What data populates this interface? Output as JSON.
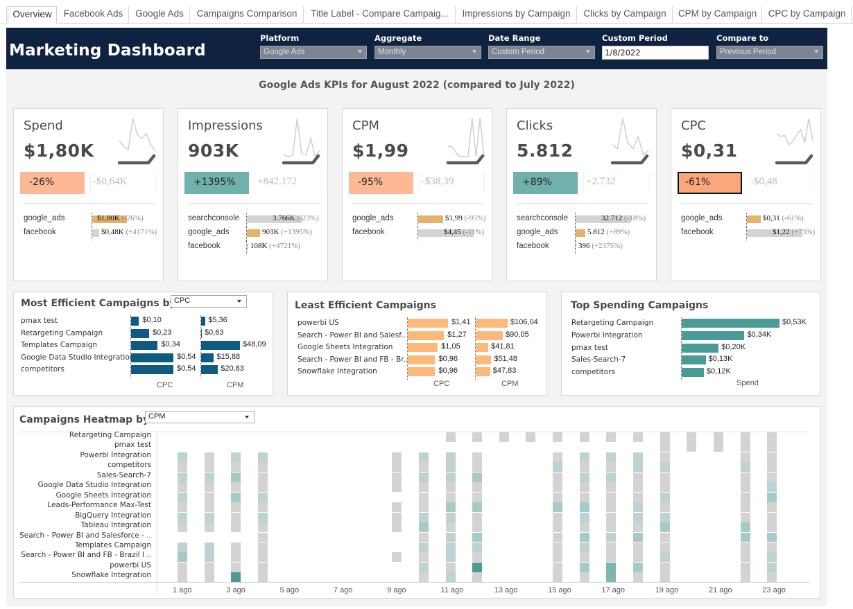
{
  "tabs": [
    {
      "label": "Overview",
      "active": true
    },
    {
      "label": "Facebook Ads"
    },
    {
      "label": "Google Ads"
    },
    {
      "label": "Campaigns Comparison"
    },
    {
      "label": "Title Label - Compare Campaig..."
    },
    {
      "label": "Impressions by Campaign"
    },
    {
      "label": "Clicks by Campaign"
    },
    {
      "label": "CPM by Campaign"
    },
    {
      "label": "CPC by Campaign"
    }
  ],
  "header": {
    "title": "Marketing Dashboard",
    "filters": [
      {
        "label": "Platform",
        "value": "Google Ads",
        "type": "select"
      },
      {
        "label": "Aggregate",
        "value": "Monthly",
        "type": "select"
      },
      {
        "label": "Date Range",
        "value": "Custom Period",
        "type": "select"
      },
      {
        "label": "Custom Period",
        "value": "1/8/2022",
        "type": "input"
      },
      {
        "label": "Compare to",
        "value": "Previous Period",
        "type": "select"
      }
    ]
  },
  "subtitle": "Google Ads KPIs for August 2022 (compared to July 2022)",
  "colors": {
    "header_bg": "#0f2341",
    "negative": "#fdb896",
    "positive": "#71b1ac",
    "efficient_bar": "#0e5a80",
    "least_efficient_bar": "#fdb97a",
    "top_spend_bar": "#4a9a95",
    "google_ads_bar": "#e4b26a",
    "other_bar": "#d3d3d3",
    "sparkline": "#cfcfcf",
    "sparkline_current": "#555a63"
  },
  "kpis": [
    {
      "name": "Spend",
      "value": "$1,80K",
      "change": "-26%",
      "change_type": "neg",
      "delta": "-$0,64K",
      "spark": [
        0.45,
        0.3,
        0.22,
        1.0,
        0.6,
        0.5,
        0.62,
        0.35,
        0.18
      ],
      "breakdown": [
        {
          "source": "google_ads",
          "value": "$1,80K",
          "pct": "(-26%)",
          "share": 0.62,
          "highlight": true
        },
        {
          "source": "facebook",
          "value": "$0,48K",
          "pct": "(+4171%)",
          "share": 0.12,
          "highlight": false
        }
      ]
    },
    {
      "name": "Impressions",
      "value": "903K",
      "change": "+1395%",
      "change_type": "pos",
      "delta": "+842.172",
      "spark": [
        0.1,
        0.05,
        0.08,
        1.0,
        0.12,
        0.1,
        0.5,
        0.05,
        0.2
      ],
      "breakdown": [
        {
          "source": "searchconsole",
          "value": "3.766K",
          "pct": "(-23%)",
          "share": 1.0,
          "highlight": false
        },
        {
          "source": "google_ads",
          "value": "903K",
          "pct": "(+1395%)",
          "share": 0.24,
          "highlight": true
        },
        {
          "source": "facebook",
          "value": "108K",
          "pct": "(+4721%)",
          "share": 0.03,
          "highlight": false
        }
      ]
    },
    {
      "name": "CPM",
      "value": "$1,99",
      "change": "-95%",
      "change_type": "neg",
      "delta": "-$38,39",
      "spark": [
        0.3,
        0.3,
        0.15,
        0.05,
        0.05,
        0.05,
        1.0,
        0.05,
        1.02,
        0.05
      ],
      "breakdown": [
        {
          "source": "google_ads",
          "value": "$1,99",
          "pct": "(-95%)",
          "share": 0.45,
          "highlight": true
        },
        {
          "source": "facebook",
          "value": "$4,45",
          "pct": "(-11%)",
          "share": 1.0,
          "highlight": false
        }
      ]
    },
    {
      "name": "Clicks",
      "value": "5.812",
      "change": "+89%",
      "change_type": "pos",
      "delta": "+2.732",
      "spark": [
        0.35,
        0.25,
        1.0,
        0.4,
        0.25,
        0.55,
        0.1,
        0.2
      ],
      "breakdown": [
        {
          "source": "searchconsole",
          "value": "32.712",
          "pct": "(-18%)",
          "share": 1.0,
          "highlight": false
        },
        {
          "source": "google_ads",
          "value": "5.812",
          "pct": "(+89%)",
          "share": 0.18,
          "highlight": true
        },
        {
          "source": "facebook",
          "value": "396",
          "pct": "(+2375%)",
          "share": 0.01,
          "highlight": false
        }
      ]
    },
    {
      "name": "CPC",
      "value": "$0,31",
      "change": "-61%",
      "change_type": "sel",
      "delta": "-$0,48",
      "spark": [
        0.62,
        0.55,
        0.58,
        0.35,
        0.42,
        0.6,
        0.72,
        0.4,
        1.0,
        0.45
      ],
      "breakdown": [
        {
          "source": "google_ads",
          "value": "$0,31",
          "pct": "(-61%)",
          "share": 0.25,
          "highlight": true
        },
        {
          "source": "facebook",
          "value": "$1,22",
          "pct": "(+73%)",
          "share": 1.0,
          "highlight": false
        }
      ]
    }
  ],
  "most_efficient": {
    "title": "Most Efficient Campaigns by",
    "selector": "CPC",
    "col_labels": [
      "CPC",
      "CPM"
    ],
    "rows": [
      {
        "name": "pmax test",
        "cpc": 0.1,
        "cpc_label": "$0,10",
        "cpm": 5.36,
        "cpm_label": "$5,36"
      },
      {
        "name": "Retargeting Campaign",
        "cpc": 0.23,
        "cpc_label": "$0,23",
        "cpm": 0.63,
        "cpm_label": "$0,63"
      },
      {
        "name": "Templates Campaign",
        "cpc": 0.34,
        "cpc_label": "$0,34",
        "cpm": 48.09,
        "cpm_label": "$48,09"
      },
      {
        "name": "Google Data Studio Integration",
        "cpc": 0.54,
        "cpc_label": "$0,54",
        "cpm": 15.88,
        "cpm_label": "$15,88"
      },
      {
        "name": "competitors",
        "cpc": 0.54,
        "cpc_label": "$0,54",
        "cpm": 20.83,
        "cpm_label": "$20,83"
      }
    ]
  },
  "least_efficient": {
    "title": "Least Efficient Campaigns",
    "col_labels": [
      "CPC",
      "CPM"
    ],
    "rows": [
      {
        "name": "powerbi US",
        "cpc": 1.41,
        "cpc_label": "$1,41",
        "cpm": 106.04,
        "cpm_label": "$106,04"
      },
      {
        "name": "Search - Power BI and Salesf..",
        "cpc": 1.27,
        "cpc_label": "$1,27",
        "cpm": 90.05,
        "cpm_label": "$90,05"
      },
      {
        "name": "Google Sheets Integration",
        "cpc": 1.05,
        "cpc_label": "$1,05",
        "cpm": 41.81,
        "cpm_label": "$41,81"
      },
      {
        "name": "Search - Power BI and FB - Br..",
        "cpc": 0.96,
        "cpc_label": "$0,96",
        "cpm": 51.48,
        "cpm_label": "$51,48"
      },
      {
        "name": "Snowflake Integration",
        "cpc": 0.96,
        "cpc_label": "$0,96",
        "cpm": 47.83,
        "cpm_label": "$47,83"
      }
    ]
  },
  "top_spending": {
    "title": "Top Spending Campaigns",
    "col_label": "Spend",
    "rows": [
      {
        "name": "Retargeting Campaign",
        "spend": 0.53,
        "label": "$0,53K"
      },
      {
        "name": "Powerbi Integration",
        "spend": 0.34,
        "label": "$0,34K"
      },
      {
        "name": "pmax test",
        "spend": 0.2,
        "label": "$0,20K"
      },
      {
        "name": "Sales-Search-7",
        "spend": 0.13,
        "label": "$0,13K"
      },
      {
        "name": "competitors",
        "spend": 0.12,
        "label": "$0,12K"
      }
    ]
  },
  "heatmap": {
    "title": "Campaigns Heatmap by",
    "selector": "CPM",
    "campaigns": [
      "Retargeting Campaign",
      "pmax test",
      "Powerbi Integration",
      "competitors",
      "Sales-Search-7",
      "Google Data Studio Integration",
      "Google Sheets Integration",
      "Leads-Performance Max-Test",
      "BigQuery Integration",
      "Tableau Integration",
      "Search - Power BI and Salesforce - ..",
      "Templates Campaign",
      "Search - Power BI and FB - Brazil I ..",
      "powerbi US",
      "Snowflake Integration"
    ],
    "x_ticks": [
      "1 ago",
      "3 ago",
      "5 ago",
      "7 ago",
      "9 ago",
      "11 ago",
      "13 ago",
      "15 ago",
      "17 ago",
      "19 ago",
      "21 ago",
      "23 ago"
    ],
    "days": [
      1,
      2,
      3,
      4,
      5,
      6,
      7,
      8,
      9,
      10,
      11,
      12,
      13,
      14,
      15,
      16,
      17,
      18,
      19,
      20,
      21,
      22,
      23,
      24
    ],
    "intensity_legend": "0=no data, 1=low (grey), 5=high (teal)",
    "values": [
      [
        0,
        0,
        0,
        0,
        0,
        0,
        0,
        0,
        0,
        0,
        1,
        1,
        1,
        1,
        1,
        1,
        1,
        1,
        1,
        1,
        1,
        1,
        1,
        0
      ],
      [
        0,
        0,
        0,
        0,
        0,
        0,
        0,
        0,
        0,
        0,
        0,
        0,
        0,
        0,
        0,
        0,
        0,
        0,
        1,
        1,
        1,
        1,
        1,
        0
      ],
      [
        2,
        1,
        2,
        2,
        0,
        0,
        0,
        0,
        1,
        2,
        2,
        1,
        0,
        0,
        1,
        2,
        2,
        2,
        1,
        0,
        0,
        1,
        1,
        0
      ],
      [
        1,
        1,
        1,
        1,
        0,
        0,
        0,
        0,
        1,
        1,
        2,
        1,
        0,
        0,
        2,
        1,
        1,
        2,
        2,
        0,
        0,
        2,
        1,
        0
      ],
      [
        2,
        2,
        3,
        1,
        0,
        0,
        0,
        0,
        1,
        2,
        2,
        3,
        0,
        0,
        1,
        2,
        2,
        1,
        1,
        0,
        0,
        1,
        1,
        0
      ],
      [
        1,
        1,
        1,
        1,
        0,
        0,
        0,
        0,
        1,
        1,
        1,
        1,
        0,
        0,
        1,
        1,
        1,
        1,
        1,
        0,
        0,
        1,
        2,
        0
      ],
      [
        2,
        1,
        3,
        2,
        0,
        0,
        0,
        0,
        0,
        1,
        1,
        1,
        0,
        0,
        1,
        1,
        1,
        1,
        2,
        0,
        0,
        1,
        3,
        0
      ],
      [
        1,
        1,
        1,
        1,
        0,
        0,
        0,
        0,
        1,
        1,
        3,
        3,
        0,
        0,
        3,
        3,
        1,
        2,
        1,
        0,
        0,
        1,
        1,
        0
      ],
      [
        2,
        2,
        1,
        2,
        0,
        0,
        0,
        0,
        1,
        2,
        2,
        1,
        0,
        0,
        1,
        2,
        1,
        2,
        2,
        0,
        0,
        1,
        1,
        0
      ],
      [
        1,
        1,
        1,
        1,
        0,
        0,
        0,
        0,
        1,
        3,
        1,
        1,
        0,
        0,
        1,
        1,
        1,
        1,
        3,
        0,
        0,
        3,
        1,
        0
      ],
      [
        0,
        0,
        0,
        1,
        0,
        0,
        0,
        0,
        0,
        1,
        2,
        3,
        0,
        0,
        1,
        3,
        2,
        3,
        1,
        0,
        0,
        3,
        3,
        0
      ],
      [
        2,
        2,
        1,
        1,
        0,
        0,
        0,
        0,
        0,
        2,
        2,
        2,
        0,
        0,
        1,
        2,
        1,
        1,
        1,
        0,
        0,
        1,
        1,
        0
      ],
      [
        3,
        2,
        1,
        1,
        0,
        0,
        0,
        0,
        1,
        1,
        2,
        1,
        0,
        0,
        1,
        1,
        1,
        1,
        2,
        0,
        0,
        1,
        2,
        0
      ],
      [
        1,
        1,
        1,
        1,
        0,
        0,
        0,
        0,
        0,
        2,
        1,
        5,
        0,
        0,
        1,
        3,
        4,
        3,
        1,
        0,
        0,
        1,
        2,
        0
      ],
      [
        1,
        1,
        5,
        1,
        0,
        0,
        0,
        0,
        0,
        1,
        2,
        1,
        0,
        0,
        1,
        1,
        4,
        1,
        1,
        0,
        0,
        1,
        1,
        0
      ]
    ]
  }
}
